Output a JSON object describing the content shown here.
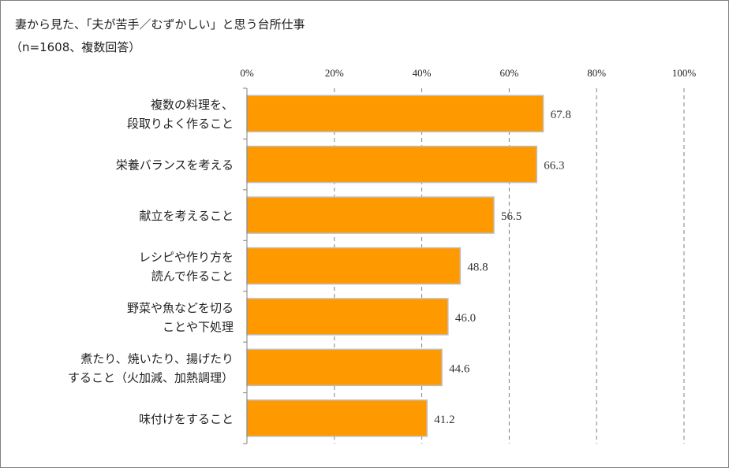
{
  "title": "妻から見た、「夫が苦手／むずかしい」と思う台所仕事",
  "subtitle": "（n=1608、複数回答）",
  "chart_data": {
    "type": "bar",
    "orientation": "horizontal",
    "categories": [
      [
        "複数の料理を、",
        "段取りよく作ること"
      ],
      [
        "栄養バランスを考える"
      ],
      [
        "献立を考えること"
      ],
      [
        "レシピや作り方を",
        "読んで作ること"
      ],
      [
        "野菜や魚などを切る",
        "ことや下処理"
      ],
      [
        "煮たり、焼いたり、揚げたり",
        "すること（火加減、加熱調理）"
      ],
      [
        "味付けをすること"
      ]
    ],
    "values": [
      67.8,
      66.3,
      56.5,
      48.8,
      46.0,
      44.6,
      41.2
    ],
    "value_labels": [
      "67.8",
      "66.3",
      "56.5",
      "48.8",
      "46.0",
      "44.6",
      "41.2"
    ],
    "xticks": [
      "0%",
      "20%",
      "40%",
      "60%",
      "80%",
      "100%"
    ],
    "xlim": [
      0,
      100
    ],
    "grid": "dashed vertical",
    "bar_color": "#FF9900",
    "bar_edge_color": "#BFBFBF",
    "grid_color": "#808080"
  }
}
